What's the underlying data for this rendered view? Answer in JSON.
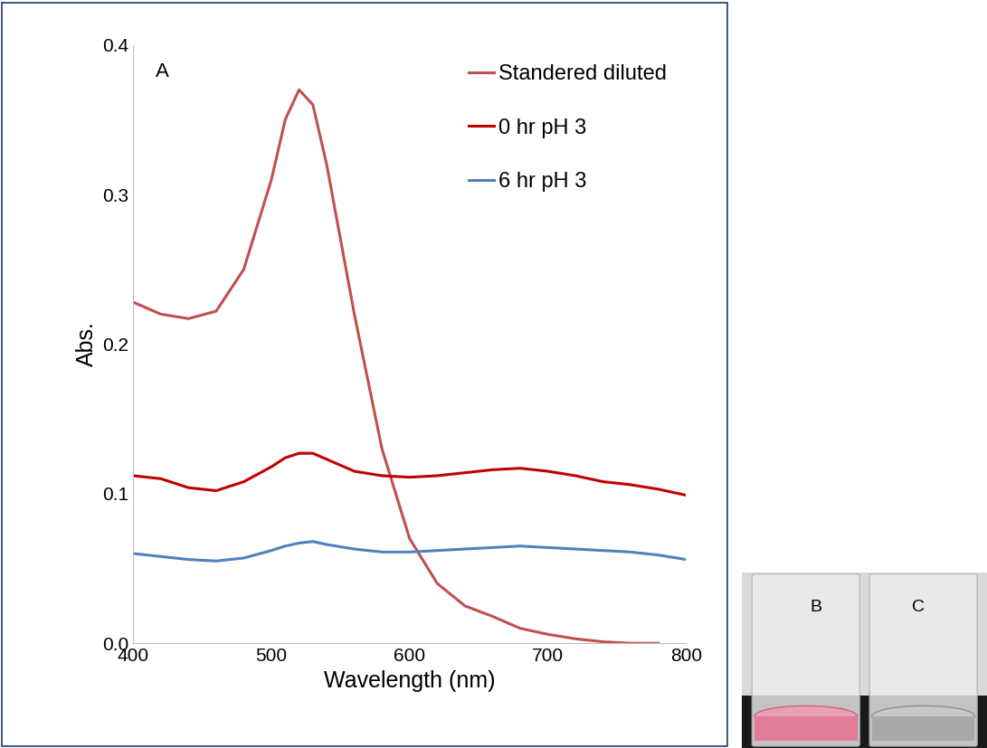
{
  "chart_data": {
    "type": "line",
    "xlabel": "Wavelength (nm)",
    "ylabel": "Abs.",
    "annotations": [
      "A"
    ],
    "x": [
      400,
      420,
      440,
      460,
      480,
      500,
      510,
      520,
      530,
      540,
      560,
      580,
      600,
      620,
      640,
      660,
      680,
      700,
      720,
      740,
      760,
      780,
      800
    ],
    "series": [
      {
        "name": "Standered diluted",
        "color": "#c0504d",
        "values": [
          0.228,
          0.22,
          0.217,
          0.222,
          0.25,
          0.31,
          0.35,
          0.37,
          0.36,
          0.32,
          0.22,
          0.13,
          0.07,
          0.04,
          0.025,
          0.018,
          0.01,
          0.006,
          0.003,
          0.001,
          0.0,
          0.0,
          null
        ]
      },
      {
        "name": "0 hr pH 3",
        "color": "#c00000",
        "values": [
          0.112,
          0.11,
          0.104,
          0.102,
          0.108,
          0.118,
          0.124,
          0.127,
          0.127,
          0.123,
          0.115,
          0.112,
          0.111,
          0.112,
          0.114,
          0.116,
          0.117,
          0.115,
          0.112,
          0.108,
          0.106,
          0.103,
          0.099
        ]
      },
      {
        "name": "6 hr pH 3",
        "color": "#4f81bd",
        "values": [
          0.06,
          0.058,
          0.056,
          0.055,
          0.057,
          0.062,
          0.065,
          0.067,
          0.068,
          0.066,
          0.063,
          0.061,
          0.061,
          0.062,
          0.063,
          0.064,
          0.065,
          0.064,
          0.063,
          0.062,
          0.061,
          0.059,
          0.056
        ]
      }
    ],
    "xlim": [
      400,
      800
    ],
    "xticks": [
      400,
      500,
      600,
      700,
      800
    ],
    "ylim": [
      0.0,
      0.4
    ],
    "yticks": [
      0.0,
      0.1,
      0.2,
      0.3,
      0.4
    ],
    "grid": false,
    "legend": "upper right"
  },
  "photo_labels": [
    "B",
    "C"
  ]
}
